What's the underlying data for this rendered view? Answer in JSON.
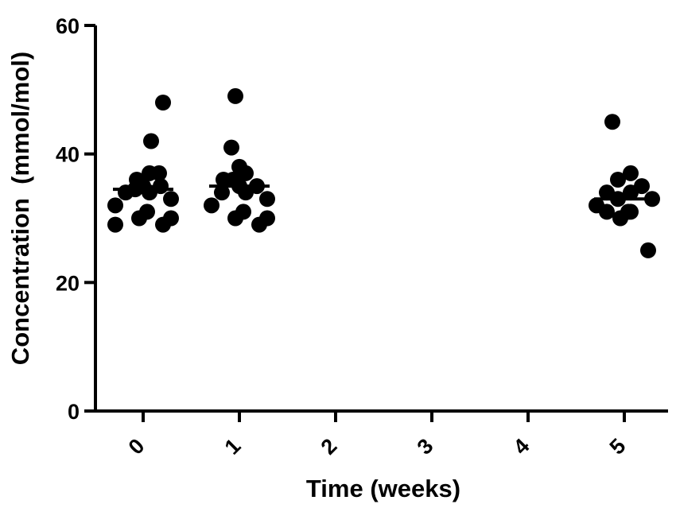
{
  "chart_data": {
    "type": "scatter",
    "subtype": "dot-plot-with-mean-lines",
    "xlabel": "Time (weeks)",
    "ylabel": "Concentration  (mmol/mol)",
    "x_ticks": [
      "0",
      "1",
      "2",
      "3",
      "4",
      "5"
    ],
    "y_ticks": [
      "0",
      "20",
      "40",
      "60"
    ],
    "ylim": [
      0,
      60
    ],
    "grid": false,
    "marker_color": "#000000",
    "groups": [
      {
        "x": 0,
        "mean": 34.5,
        "values": [
          48,
          42,
          37,
          37,
          36,
          35,
          35,
          34.5,
          34,
          34,
          33,
          32,
          31,
          30,
          30,
          29,
          29
        ]
      },
      {
        "x": 1,
        "mean": 35,
        "values": [
          49,
          41,
          38,
          37,
          36,
          36,
          35,
          35,
          34,
          34,
          33,
          32,
          31,
          30,
          30,
          29
        ]
      },
      {
        "x": 5,
        "mean": 33,
        "values": [
          45,
          37,
          36,
          35,
          34,
          34,
          33,
          33,
          32,
          31,
          31,
          31,
          30,
          25
        ]
      }
    ]
  }
}
